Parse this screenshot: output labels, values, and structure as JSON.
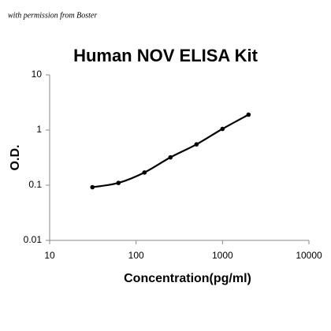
{
  "watermark": "with permission from Boster",
  "chart_data": {
    "type": "scatter",
    "title": "Human NOV ELISA Kit",
    "x_label": "Concentration(pg/ml)",
    "y_label": "O.D.",
    "x": [
      31.25,
      62.5,
      125,
      250,
      500,
      1000,
      2000
    ],
    "values": [
      0.092,
      0.11,
      0.17,
      0.32,
      0.55,
      1.05,
      1.9
    ],
    "color": "#000000",
    "fit_line": true,
    "x_log": true,
    "y_log": true,
    "xlim": [
      10,
      10000
    ],
    "xticks": [
      10,
      100,
      1000,
      10000
    ],
    "ylim": [
      0.01,
      10
    ],
    "yticks": [
      0.01,
      0.1,
      1,
      10
    ],
    "grid": false
  }
}
